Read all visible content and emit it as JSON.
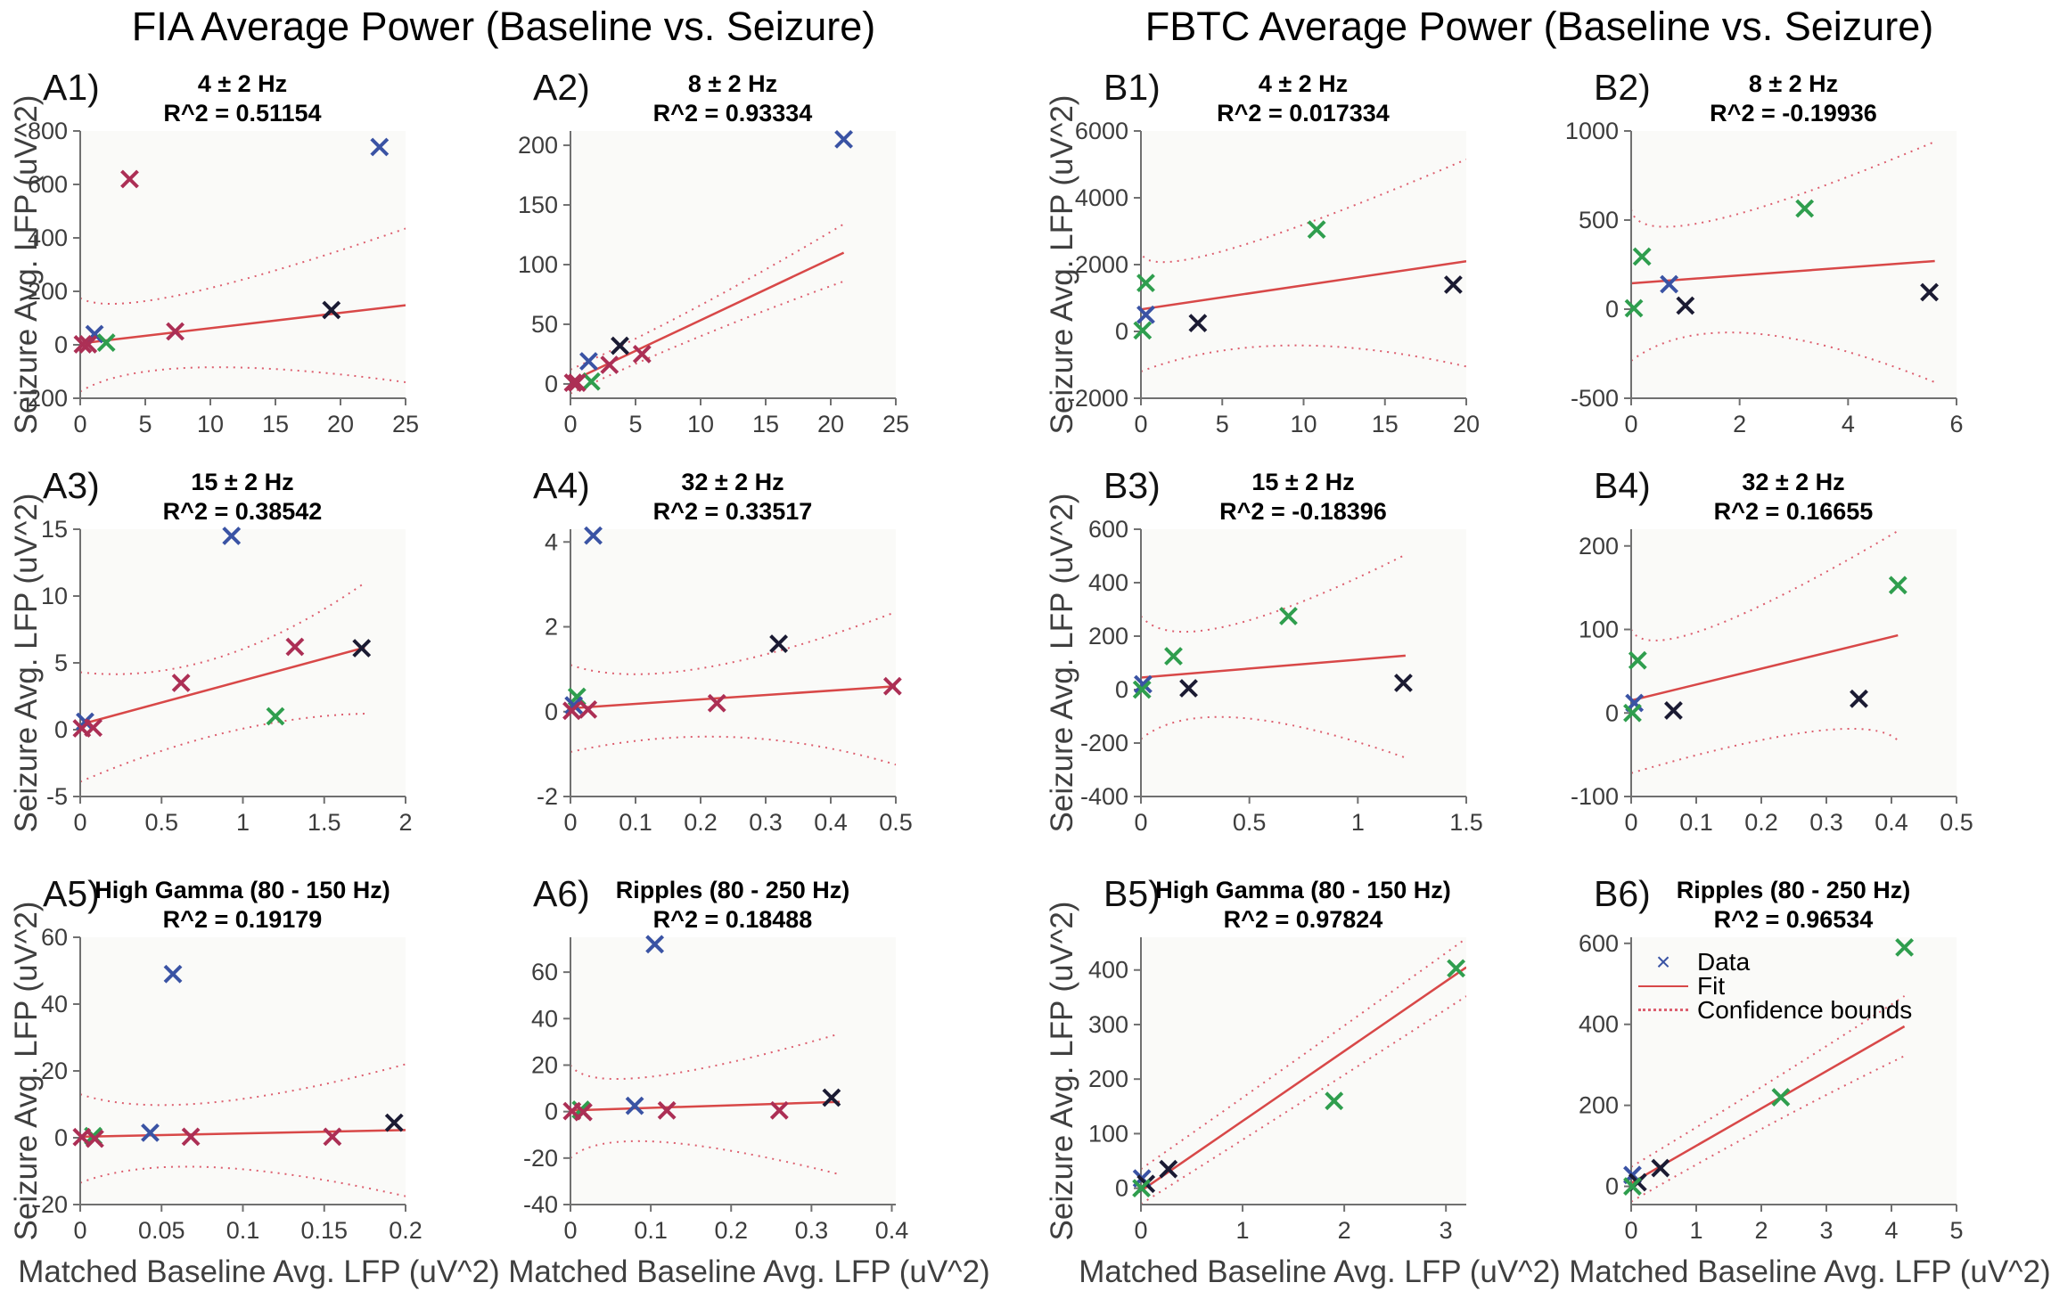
{
  "page": {
    "fia_title": "FIA Average Power (Baseline vs. Seizure)",
    "fbtc_title": "FBTC Average Power (Baseline vs. Seizure)",
    "ylabel": "Seizure Avg. LFP (uV^2)",
    "xlabel": "Matched Baseline Avg. LFP (uV^2)"
  },
  "legend": {
    "data": "Data",
    "fit": "Fit",
    "confidence": "Confidence bounds"
  },
  "colors": {
    "blue": "#3a53a4",
    "crimson": "#ac2f55",
    "green": "#2f9e4e",
    "black": "#1b1b33",
    "fit": "#d84848",
    "ci": "#dd5f6f",
    "axis": "#707070",
    "tick_text": "#3d3d3d",
    "plot_bg": "#fafaf8"
  },
  "chart_data": [
    {
      "id": "A1",
      "label": "A1)",
      "title": "4 ± 2 Hz",
      "subtitle": "R^2 = 0.51154",
      "type": "scatter",
      "xlim": [
        0,
        25
      ],
      "ylim": [
        -200,
        800
      ],
      "xticks": [
        0,
        5,
        10,
        15,
        20,
        25
      ],
      "yticks": [
        -200,
        0,
        200,
        400,
        600,
        800
      ],
      "points": [
        [
          23,
          740,
          "blue"
        ],
        [
          3.8,
          620,
          "crimson"
        ],
        [
          19.3,
          130,
          "black"
        ],
        [
          7.3,
          50,
          "crimson"
        ],
        [
          1.1,
          40,
          "blue"
        ],
        [
          2,
          8,
          "green"
        ],
        [
          0.2,
          2,
          "crimson"
        ],
        [
          0.6,
          2,
          "crimson"
        ]
      ],
      "fit": [
        [
          0,
          5
        ],
        [
          25,
          148
        ]
      ],
      "ci_upper": [
        [
          0,
          175
        ],
        [
          8,
          190
        ],
        [
          25,
          435
        ]
      ],
      "ci_lower": [
        [
          0,
          -175
        ],
        [
          9,
          -85
        ],
        [
          25,
          -140
        ]
      ],
      "has_legend": false
    },
    {
      "id": "A2",
      "label": "A2)",
      "title": "8 ± 2 Hz",
      "subtitle": "R^2 = 0.93334",
      "type": "scatter",
      "xlim": [
        0,
        25
      ],
      "ylim": [
        -12,
        212
      ],
      "xticks": [
        0,
        5,
        10,
        15,
        20,
        25
      ],
      "yticks": [
        0,
        50,
        100,
        150,
        200
      ],
      "points": [
        [
          21,
          205,
          "blue"
        ],
        [
          3.8,
          32,
          "black"
        ],
        [
          5.5,
          25,
          "crimson"
        ],
        [
          3,
          16,
          "crimson"
        ],
        [
          1.4,
          19,
          "blue"
        ],
        [
          1.6,
          2,
          "green"
        ],
        [
          0.2,
          1,
          "crimson"
        ],
        [
          0.5,
          1,
          "crimson"
        ]
      ],
      "fit": [
        [
          0,
          2
        ],
        [
          21,
          110
        ]
      ],
      "ci_upper": [
        [
          0,
          12
        ],
        [
          10,
          66
        ],
        [
          21,
          134
        ]
      ],
      "ci_lower": [
        [
          0,
          -8
        ],
        [
          10,
          40
        ],
        [
          21,
          86
        ]
      ],
      "has_legend": false
    },
    {
      "id": "A3",
      "label": "A3)",
      "title": "15 ± 2 Hz",
      "subtitle": "R^2 = 0.38542",
      "type": "scatter",
      "xlim": [
        0,
        2
      ],
      "ylim": [
        -5,
        15
      ],
      "xticks": [
        0,
        0.5,
        1,
        1.5,
        2
      ],
      "yticks": [
        -5,
        0,
        5,
        10,
        15
      ],
      "points": [
        [
          0.93,
          14.5,
          "blue"
        ],
        [
          1.32,
          6.2,
          "crimson"
        ],
        [
          1.73,
          6.1,
          "black"
        ],
        [
          0.62,
          3.5,
          "crimson"
        ],
        [
          1.2,
          1,
          "green"
        ],
        [
          0.03,
          0.6,
          "blue"
        ],
        [
          0.01,
          0.1,
          "crimson"
        ],
        [
          0.08,
          0.15,
          "crimson"
        ]
      ],
      "fit": [
        [
          0.05,
          0.55
        ],
        [
          1.75,
          6.15
        ]
      ],
      "ci_upper": [
        [
          0,
          4.3
        ],
        [
          0.85,
          5.4
        ],
        [
          1.75,
          11
        ]
      ],
      "ci_lower": [
        [
          0,
          -3.9
        ],
        [
          0.9,
          -0.2
        ],
        [
          1.75,
          1.2
        ]
      ],
      "has_legend": false
    },
    {
      "id": "A4",
      "label": "A4)",
      "title": "32 ± 2 Hz",
      "subtitle": "R^2 = 0.33517",
      "type": "scatter",
      "xlim": [
        0,
        0.5
      ],
      "ylim": [
        -2,
        4.3
      ],
      "xticks": [
        0,
        0.1,
        0.2,
        0.3,
        0.4,
        0.5
      ],
      "yticks": [
        -2,
        0,
        2,
        4
      ],
      "points": [
        [
          0.035,
          4.15,
          "blue"
        ],
        [
          0.32,
          1.6,
          "black"
        ],
        [
          0.495,
          0.6,
          "crimson"
        ],
        [
          0.225,
          0.2,
          "crimson"
        ],
        [
          0.01,
          0.35,
          "green"
        ],
        [
          0.005,
          0.15,
          "blue"
        ],
        [
          0.002,
          0.02,
          "crimson"
        ],
        [
          0.027,
          0.05,
          "crimson"
        ]
      ],
      "fit": [
        [
          0,
          0.08
        ],
        [
          0.5,
          0.6
        ]
      ],
      "ci_upper": [
        [
          0,
          1.1
        ],
        [
          0.2,
          1.02
        ],
        [
          0.5,
          2.35
        ]
      ],
      "ci_lower": [
        [
          0,
          -0.95
        ],
        [
          0.25,
          -0.6
        ],
        [
          0.5,
          -1.25
        ]
      ],
      "has_legend": false
    },
    {
      "id": "A5",
      "label": "A5)",
      "title": "High Gamma (80 - 150 Hz)",
      "subtitle": "R^2 = 0.19179",
      "type": "scatter",
      "xlim": [
        0,
        0.2
      ],
      "ylim": [
        -20,
        60
      ],
      "xticks": [
        0,
        0.05,
        0.1,
        0.15,
        0.2
      ],
      "yticks": [
        -20,
        0,
        20,
        40,
        60
      ],
      "points": [
        [
          0.057,
          49,
          "blue"
        ],
        [
          0.193,
          4.5,
          "black"
        ],
        [
          0.043,
          1.5,
          "blue"
        ],
        [
          0.068,
          0.3,
          "crimson"
        ],
        [
          0.155,
          0.3,
          "crimson"
        ],
        [
          0.008,
          0.5,
          "green"
        ],
        [
          0.001,
          0.2,
          "crimson"
        ],
        [
          0.009,
          -0.3,
          "crimson"
        ]
      ],
      "fit": [
        [
          0,
          0.3
        ],
        [
          0.2,
          2.3
        ]
      ],
      "ci_upper": [
        [
          0,
          13
        ],
        [
          0.08,
          10.5
        ],
        [
          0.2,
          22
        ]
      ],
      "ci_lower": [
        [
          0,
          -13.5
        ],
        [
          0.08,
          -8.8
        ],
        [
          0.2,
          -17.5
        ]
      ],
      "has_legend": false
    },
    {
      "id": "A6",
      "label": "A6)",
      "title": "Ripples (80 - 250 Hz)",
      "subtitle": "R^2 = 0.18488",
      "type": "scatter",
      "xlim": [
        0,
        0.405
      ],
      "ylim": [
        -40,
        75
      ],
      "xticks": [
        0,
        0.1,
        0.2,
        0.3,
        0.4
      ],
      "yticks": [
        -40,
        -20,
        0,
        20,
        40,
        60
      ],
      "points": [
        [
          0.105,
          72,
          "blue"
        ],
        [
          0.325,
          6,
          "black"
        ],
        [
          0.08,
          2.5,
          "blue"
        ],
        [
          0.12,
          0.5,
          "crimson"
        ],
        [
          0.26,
          0.5,
          "crimson"
        ],
        [
          0.013,
          0.8,
          "green"
        ],
        [
          0.002,
          0.2,
          "crimson"
        ],
        [
          0.016,
          -0.2,
          "crimson"
        ]
      ],
      "fit": [
        [
          0,
          0.5
        ],
        [
          0.335,
          4.2
        ]
      ],
      "ci_upper": [
        [
          0,
          20
        ],
        [
          0.1,
          15
        ],
        [
          0.335,
          33.5
        ]
      ],
      "ci_lower": [
        [
          0,
          -20
        ],
        [
          0.11,
          -13
        ],
        [
          0.335,
          -27
        ]
      ],
      "has_legend": false
    },
    {
      "id": "B1",
      "label": "B1)",
      "title": "4 ± 2 Hz",
      "subtitle": "R^2 = 0.017334",
      "type": "scatter",
      "xlim": [
        0,
        20
      ],
      "ylim": [
        -2000,
        6000
      ],
      "xticks": [
        0,
        5,
        10,
        15,
        20
      ],
      "yticks": [
        -2000,
        0,
        2000,
        4000,
        6000
      ],
      "points": [
        [
          10.8,
          3050,
          "green"
        ],
        [
          0.3,
          1450,
          "green"
        ],
        [
          19.2,
          1400,
          "black"
        ],
        [
          0.3,
          500,
          "blue"
        ],
        [
          3.5,
          250,
          "black"
        ],
        [
          0.1,
          30,
          "green"
        ]
      ],
      "fit": [
        [
          0,
          660
        ],
        [
          20,
          2100
        ]
      ],
      "ci_upper": [
        [
          0,
          2450
        ],
        [
          5,
          2400
        ],
        [
          20,
          5150
        ]
      ],
      "ci_lower": [
        [
          0,
          -1200
        ],
        [
          9,
          -420
        ],
        [
          20,
          -1050
        ]
      ],
      "has_legend": false
    },
    {
      "id": "B2",
      "label": "B2)",
      "title": "8 ± 2 Hz",
      "subtitle": "R^2 = -0.19936",
      "type": "scatter",
      "xlim": [
        0,
        6
      ],
      "ylim": [
        -500,
        1000
      ],
      "xticks": [
        0,
        2,
        4,
        6
      ],
      "yticks": [
        -500,
        0,
        500,
        1000
      ],
      "points": [
        [
          3.2,
          565,
          "green"
        ],
        [
          0.2,
          295,
          "green"
        ],
        [
          0.7,
          140,
          "blue"
        ],
        [
          1,
          20,
          "black"
        ],
        [
          5.5,
          95,
          "black"
        ],
        [
          0.05,
          5,
          "green"
        ]
      ],
      "fit": [
        [
          0,
          145
        ],
        [
          5.6,
          270
        ]
      ],
      "ci_upper": [
        [
          0,
          560
        ],
        [
          1.5,
          498
        ],
        [
          5.6,
          940
        ]
      ],
      "ci_lower": [
        [
          0,
          -290
        ],
        [
          2.2,
          -135
        ],
        [
          5.6,
          -410
        ]
      ],
      "has_legend": false
    },
    {
      "id": "B3",
      "label": "B3)",
      "title": "15 ± 2 Hz",
      "subtitle": "R^2 = -0.18396",
      "type": "scatter",
      "xlim": [
        0,
        1.5
      ],
      "ylim": [
        -400,
        600
      ],
      "xticks": [
        0,
        0.5,
        1,
        1.5
      ],
      "yticks": [
        -400,
        -200,
        0,
        200,
        400,
        600
      ],
      "points": [
        [
          0.68,
          275,
          "green"
        ],
        [
          0.15,
          125,
          "green"
        ],
        [
          0.01,
          20,
          "blue"
        ],
        [
          0.22,
          5,
          "black"
        ],
        [
          1.21,
          25,
          "black"
        ],
        [
          0.005,
          0,
          "green"
        ]
      ],
      "fit": [
        [
          0,
          45
        ],
        [
          1.22,
          127
        ]
      ],
      "ci_upper": [
        [
          0,
          275
        ],
        [
          0.4,
          238
        ],
        [
          1.22,
          505
        ]
      ],
      "ci_lower": [
        [
          0,
          -185
        ],
        [
          0.45,
          -105
        ],
        [
          1.22,
          -255
        ]
      ],
      "has_legend": false
    },
    {
      "id": "B4",
      "label": "B4)",
      "title": "32 ± 2 Hz",
      "subtitle": "R^2 = 0.16655",
      "type": "scatter",
      "xlim": [
        0,
        0.5
      ],
      "ylim": [
        -100,
        220
      ],
      "xticks": [
        0,
        0.1,
        0.2,
        0.3,
        0.4,
        0.5
      ],
      "yticks": [
        -100,
        0,
        100,
        200
      ],
      "points": [
        [
          0.41,
          153,
          "green"
        ],
        [
          0.01,
          63,
          "green"
        ],
        [
          0.005,
          12,
          "blue"
        ],
        [
          0.065,
          3,
          "black"
        ],
        [
          0.35,
          17,
          "black"
        ],
        [
          0.002,
          0,
          "green"
        ]
      ],
      "fit": [
        [
          0,
          15
        ],
        [
          0.41,
          93
        ]
      ],
      "ci_upper": [
        [
          0,
          100
        ],
        [
          0.12,
          102
        ],
        [
          0.41,
          218
        ]
      ],
      "ci_lower": [
        [
          0,
          -72
        ],
        [
          0.28,
          -22
        ],
        [
          0.41,
          -33
        ]
      ],
      "has_legend": false
    },
    {
      "id": "B5",
      "label": "B5)",
      "title": "High Gamma (80 - 150 Hz)",
      "subtitle": "R^2 = 0.97824",
      "type": "scatter",
      "xlim": [
        0,
        3.2
      ],
      "ylim": [
        -30,
        460
      ],
      "xticks": [
        0,
        1,
        2,
        3
      ],
      "yticks": [
        0,
        100,
        200,
        300,
        400
      ],
      "points": [
        [
          3.1,
          403,
          "green"
        ],
        [
          1.9,
          160,
          "green"
        ],
        [
          0.27,
          35,
          "black"
        ],
        [
          0.01,
          18,
          "blue"
        ],
        [
          0.05,
          8,
          "black"
        ],
        [
          0.005,
          0,
          "green"
        ]
      ],
      "fit": [
        [
          0,
          -5
        ],
        [
          3.2,
          405
        ]
      ],
      "ci_upper": [
        [
          0,
          35
        ],
        [
          1.6,
          245
        ],
        [
          3.2,
          458
        ]
      ],
      "ci_lower": [
        [
          0,
          -29
        ],
        [
          1.6,
          160
        ],
        [
          3.2,
          352
        ]
      ],
      "has_legend": false
    },
    {
      "id": "B6",
      "label": "B6)",
      "title": "Ripples (80 - 250 Hz)",
      "subtitle": "R^2 = 0.96534",
      "type": "scatter",
      "xlim": [
        0,
        5
      ],
      "ylim": [
        -45,
        615
      ],
      "xticks": [
        0,
        1,
        2,
        3,
        4,
        5
      ],
      "yticks": [
        0,
        200,
        400,
        600
      ],
      "points": [
        [
          4.2,
          590,
          "green"
        ],
        [
          2.3,
          220,
          "green"
        ],
        [
          0.45,
          45,
          "black"
        ],
        [
          0.02,
          28,
          "blue"
        ],
        [
          0.1,
          10,
          "black"
        ],
        [
          0.02,
          0,
          "green"
        ]
      ],
      "fit": [
        [
          0,
          8
        ],
        [
          4.2,
          395
        ]
      ],
      "ci_upper": [
        [
          0,
          48
        ],
        [
          2.1,
          255
        ],
        [
          4.2,
          470
        ]
      ],
      "ci_lower": [
        [
          0,
          -38
        ],
        [
          2.1,
          150
        ],
        [
          4.2,
          322
        ]
      ],
      "has_legend": true
    }
  ]
}
